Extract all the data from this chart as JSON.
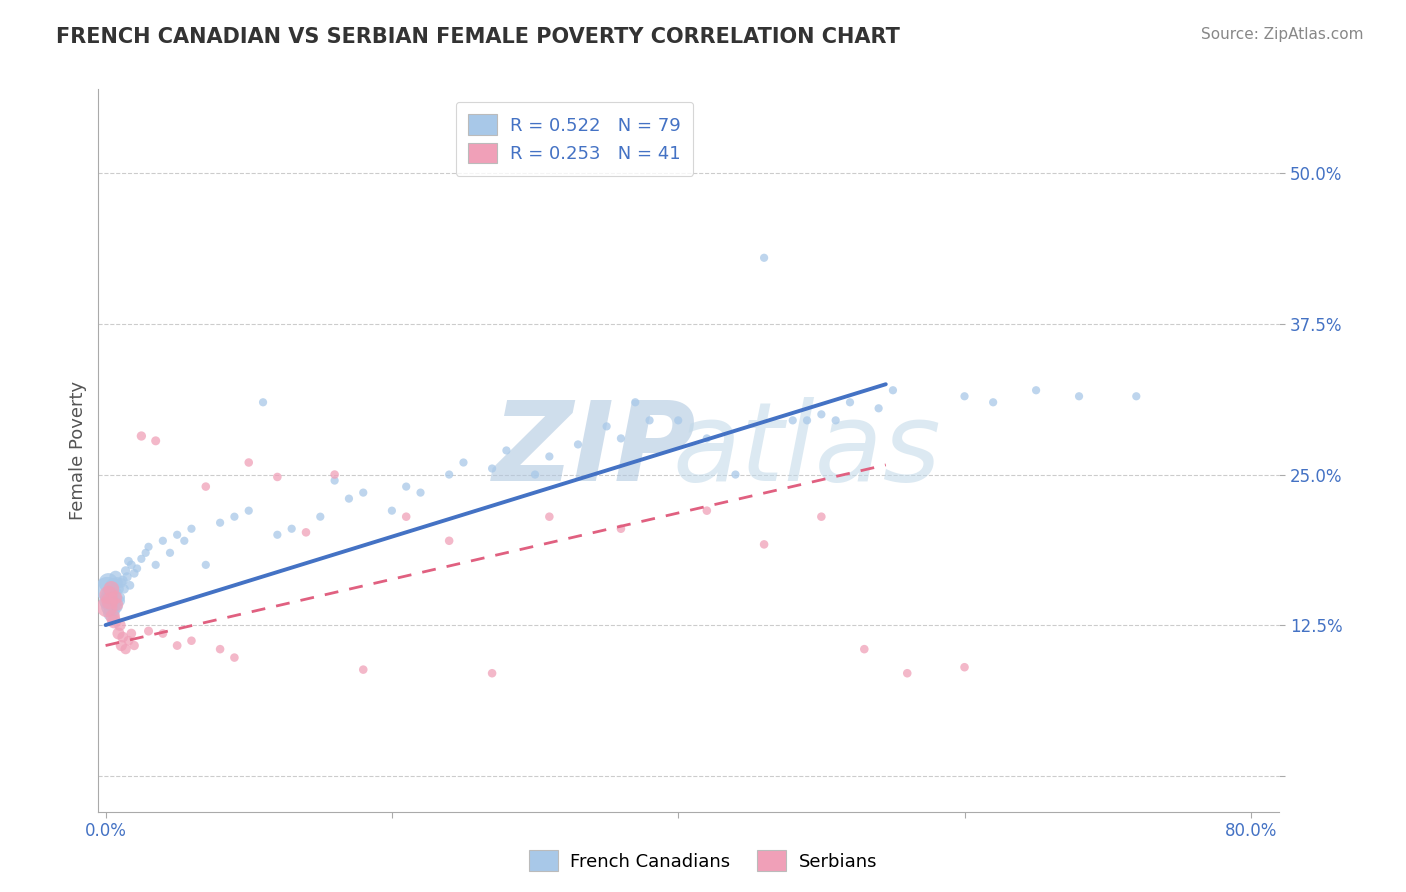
{
  "title": "FRENCH CANADIAN VS SERBIAN FEMALE POVERTY CORRELATION CHART",
  "source": "Source: ZipAtlas.com",
  "xlabel": "",
  "ylabel": "Female Poverty",
  "xlim": [
    -0.005,
    0.82
  ],
  "ylim": [
    -0.03,
    0.57
  ],
  "yticks": [
    0.0,
    0.125,
    0.25,
    0.375,
    0.5
  ],
  "ytick_labels": [
    "",
    "12.5%",
    "25.0%",
    "37.5%",
    "50.0%"
  ],
  "xticks": [
    0.0,
    0.2,
    0.4,
    0.6,
    0.8
  ],
  "xtick_labels": [
    "0.0%",
    "",
    "",
    "",
    "80.0%"
  ],
  "legend_r1": "R = 0.522",
  "legend_n1": "N = 79",
  "legend_r2": "R = 0.253",
  "legend_n2": "N = 41",
  "blue_color": "#A8C8E8",
  "pink_color": "#F0A0B8",
  "blue_line_color": "#4472C4",
  "pink_line_color": "#E06080",
  "blue_line_x0": 0.0,
  "blue_line_y0": 0.125,
  "blue_line_x1": 0.545,
  "blue_line_y1": 0.325,
  "pink_line_x0": 0.0,
  "pink_line_y0": 0.108,
  "pink_line_x1": 0.545,
  "pink_line_y1": 0.258,
  "french_canadian_x": [
    0.001,
    0.002,
    0.002,
    0.003,
    0.003,
    0.004,
    0.004,
    0.005,
    0.005,
    0.005,
    0.006,
    0.006,
    0.007,
    0.007,
    0.008,
    0.008,
    0.009,
    0.01,
    0.01,
    0.011,
    0.012,
    0.013,
    0.014,
    0.015,
    0.016,
    0.017,
    0.018,
    0.02,
    0.022,
    0.025,
    0.028,
    0.03,
    0.035,
    0.04,
    0.045,
    0.05,
    0.055,
    0.06,
    0.07,
    0.08,
    0.09,
    0.1,
    0.11,
    0.12,
    0.13,
    0.15,
    0.16,
    0.17,
    0.18,
    0.2,
    0.21,
    0.22,
    0.24,
    0.25,
    0.27,
    0.28,
    0.3,
    0.31,
    0.33,
    0.35,
    0.36,
    0.37,
    0.38,
    0.4,
    0.42,
    0.44,
    0.46,
    0.48,
    0.49,
    0.5,
    0.51,
    0.52,
    0.54,
    0.55,
    0.6,
    0.62,
    0.65,
    0.68,
    0.72
  ],
  "french_canadian_y": [
    0.155,
    0.16,
    0.145,
    0.14,
    0.15,
    0.135,
    0.148,
    0.142,
    0.152,
    0.158,
    0.145,
    0.138,
    0.165,
    0.152,
    0.16,
    0.14,
    0.155,
    0.148,
    0.145,
    0.16,
    0.162,
    0.155,
    0.17,
    0.165,
    0.178,
    0.158,
    0.175,
    0.168,
    0.172,
    0.18,
    0.185,
    0.19,
    0.175,
    0.195,
    0.185,
    0.2,
    0.195,
    0.205,
    0.175,
    0.21,
    0.215,
    0.22,
    0.31,
    0.2,
    0.205,
    0.215,
    0.245,
    0.23,
    0.235,
    0.22,
    0.24,
    0.235,
    0.25,
    0.26,
    0.255,
    0.27,
    0.25,
    0.265,
    0.275,
    0.29,
    0.28,
    0.31,
    0.295,
    0.295,
    0.28,
    0.25,
    0.43,
    0.295,
    0.295,
    0.3,
    0.295,
    0.31,
    0.305,
    0.32,
    0.315,
    0.31,
    0.32,
    0.315,
    0.315
  ],
  "french_canadian_s": [
    300,
    200,
    180,
    160,
    150,
    140,
    130,
    120,
    110,
    100,
    90,
    85,
    80,
    75,
    70,
    65,
    60,
    55,
    55,
    50,
    50,
    45,
    45,
    45,
    40,
    40,
    40,
    40,
    35,
    35,
    35,
    35,
    35,
    35,
    35,
    35,
    35,
    35,
    35,
    35,
    35,
    35,
    35,
    35,
    35,
    35,
    35,
    35,
    35,
    35,
    35,
    35,
    35,
    35,
    35,
    35,
    35,
    35,
    35,
    35,
    35,
    35,
    35,
    35,
    35,
    35,
    35,
    35,
    35,
    35,
    35,
    35,
    35,
    35,
    35,
    35,
    35,
    35,
    35
  ],
  "serbian_x": [
    0.001,
    0.002,
    0.003,
    0.004,
    0.005,
    0.006,
    0.007,
    0.008,
    0.009,
    0.01,
    0.011,
    0.012,
    0.014,
    0.016,
    0.018,
    0.02,
    0.025,
    0.03,
    0.035,
    0.04,
    0.05,
    0.06,
    0.07,
    0.08,
    0.09,
    0.1,
    0.12,
    0.14,
    0.16,
    0.18,
    0.21,
    0.24,
    0.27,
    0.31,
    0.36,
    0.42,
    0.46,
    0.5,
    0.53,
    0.56,
    0.6
  ],
  "serbian_y": [
    0.14,
    0.15,
    0.145,
    0.155,
    0.132,
    0.128,
    0.148,
    0.142,
    0.118,
    0.125,
    0.108,
    0.115,
    0.105,
    0.112,
    0.118,
    0.108,
    0.282,
    0.12,
    0.278,
    0.118,
    0.108,
    0.112,
    0.24,
    0.105,
    0.098,
    0.26,
    0.248,
    0.202,
    0.25,
    0.088,
    0.215,
    0.195,
    0.085,
    0.215,
    0.205,
    0.22,
    0.192,
    0.215,
    0.105,
    0.085,
    0.09
  ],
  "serbian_s": [
    220,
    170,
    150,
    130,
    110,
    100,
    90,
    80,
    75,
    70,
    65,
    60,
    55,
    50,
    48,
    45,
    45,
    42,
    42,
    40,
    40,
    38,
    38,
    38,
    38,
    38,
    38,
    38,
    38,
    38,
    38,
    38,
    38,
    38,
    38,
    38,
    38,
    38,
    38,
    38,
    38
  ]
}
